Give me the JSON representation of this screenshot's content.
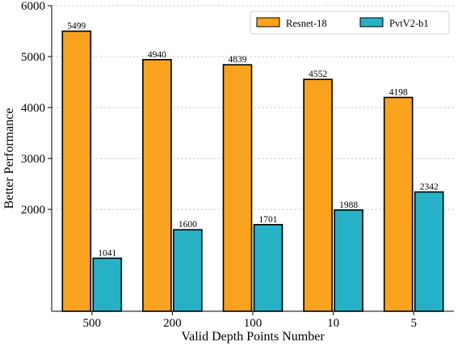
{
  "chart_data": {
    "type": "bar",
    "title": "",
    "xlabel": "Valid Depth Points Number",
    "ylabel": "Better Performance",
    "categories": [
      "500",
      "200",
      "100",
      "10",
      "5"
    ],
    "series": [
      {
        "name": "Resnet-18",
        "values": [
          5499,
          4940,
          4839,
          4552,
          4198
        ],
        "color": "#f9a21d"
      },
      {
        "name": "PvtV2-b1",
        "values": [
          1041,
          1600,
          1701,
          1988,
          2342
        ],
        "color": "#27b1c6"
      }
    ],
    "ylim": [
      0,
      6000
    ],
    "yticks": [
      2000,
      3000,
      4000,
      5000,
      6000
    ],
    "grid": "y-dashed",
    "legend": "top-right"
  }
}
